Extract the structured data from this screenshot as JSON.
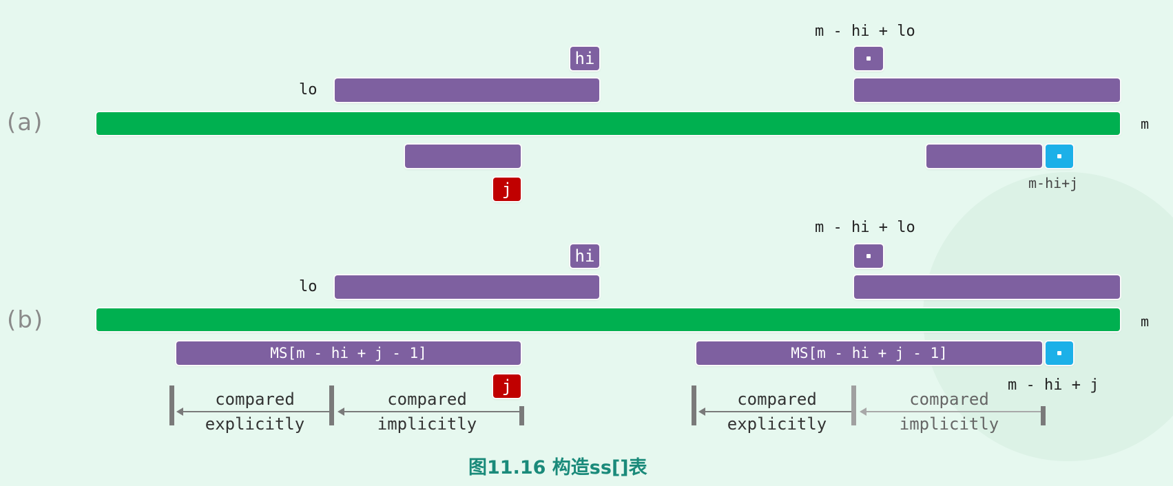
{
  "row_a": {
    "label": "(a)",
    "label_m_hi_lo": "m - hi + lo",
    "label_lo": "lo",
    "tag_hi": "hi",
    "label_m": "m",
    "tag_j": "j",
    "label_m_hi_j": "m-hi+j"
  },
  "row_b": {
    "label": "(b)",
    "label_m_hi_lo": "m - hi + lo",
    "label_lo": "lo",
    "tag_hi": "hi",
    "label_m": "m",
    "tag_j": "j",
    "label_m_hi_j": "m - hi + j",
    "ms_left": "MS[m - hi + j - 1]",
    "ms_right": "MS[m - hi + j - 1]",
    "compare": {
      "left_explicit": [
        "compared",
        "explicitly"
      ],
      "left_implicit": [
        "compared",
        "implicitly"
      ],
      "right_explicit": [
        "compared",
        "explicitly"
      ],
      "right_implicit": [
        "compared",
        "implicitly"
      ]
    }
  },
  "caption": "图11.16 构造ss[]表",
  "colors": {
    "purple": "#7e60a0",
    "green": "#00b050",
    "cyan": "#1cb0e8",
    "red": "#c00000",
    "caption": "#1a8a7a"
  }
}
